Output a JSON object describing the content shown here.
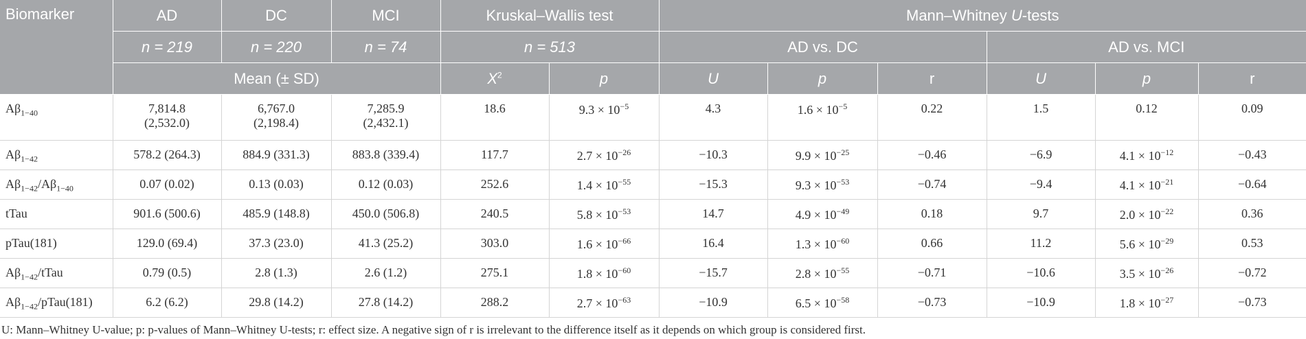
{
  "header": {
    "row1": [
      "Biomarker",
      "AD",
      "DC",
      "MCI",
      "Kruskal–Wallis test",
      [
        "Mann–Whitney ",
        {
          "i": "U"
        },
        "-tests"
      ]
    ],
    "row2": [
      "n = 219",
      "n = 220",
      "n = 74",
      "n = 513",
      "AD vs. DC",
      "AD vs. MCI"
    ],
    "row3": [
      "Mean (± SD)",
      [
        {
          "i": "X"
        },
        {
          "sup": "2"
        }
      ],
      "p",
      "U",
      "p",
      "r",
      "U",
      "p",
      "r"
    ]
  },
  "table": {
    "rows": [
      [
        [
          "Aβ",
          {
            "sub": "1−40"
          }
        ],
        [
          {
            "line": "7,814.8"
          },
          {
            "line": "(2,532.0)"
          }
        ],
        [
          {
            "line": "6,767.0"
          },
          {
            "line": "(2,198.4)"
          }
        ],
        [
          {
            "line": "7,285.9"
          },
          {
            "line": "(2,432.1)"
          }
        ],
        "18.6",
        [
          "9.3 × 10",
          {
            "sup": "−5"
          }
        ],
        "4.3",
        [
          "1.6 × 10",
          {
            "sup": "−5"
          }
        ],
        "0.22",
        "1.5",
        "0.12",
        "0.09"
      ],
      [
        [
          "Aβ",
          {
            "sub": "1−42"
          }
        ],
        "578.2 (264.3)",
        "884.9 (331.3)",
        "883.8 (339.4)",
        "117.7",
        [
          "2.7 × 10",
          {
            "sup": "−26"
          }
        ],
        "−10.3",
        [
          "9.9 × 10",
          {
            "sup": "−25"
          }
        ],
        "−0.46",
        "−6.9",
        [
          "4.1 × 10",
          {
            "sup": "−12"
          }
        ],
        "−0.43"
      ],
      [
        [
          "Aβ",
          {
            "sub": "1−42"
          },
          "/Aβ",
          {
            "sub": "1−40"
          }
        ],
        "0.07 (0.02)",
        "0.13 (0.03)",
        "0.12 (0.03)",
        "252.6",
        [
          "1.4 × 10",
          {
            "sup": "−55"
          }
        ],
        "−15.3",
        [
          "9.3 × 10",
          {
            "sup": "−53"
          }
        ],
        "−0.74",
        "−9.4",
        [
          "4.1 × 10",
          {
            "sup": "−21"
          }
        ],
        "−0.64"
      ],
      [
        "tTau",
        "901.6 (500.6)",
        "485.9 (148.8)",
        "450.0 (506.8)",
        "240.5",
        [
          "5.8 × 10",
          {
            "sup": "−53"
          }
        ],
        "14.7",
        [
          "4.9 × 10",
          {
            "sup": "−49"
          }
        ],
        "0.18",
        "9.7",
        [
          "2.0 × 10",
          {
            "sup": "−22"
          }
        ],
        "0.36"
      ],
      [
        "pTau(181)",
        "129.0 (69.4)",
        "37.3 (23.0)",
        "41.3 (25.2)",
        "303.0",
        [
          "1.6 × 10",
          {
            "sup": "−66"
          }
        ],
        "16.4",
        [
          "1.3 × 10",
          {
            "sup": "−60"
          }
        ],
        "0.66",
        "11.2",
        [
          "5.6 × 10",
          {
            "sup": "−29"
          }
        ],
        "0.53"
      ],
      [
        [
          "Aβ",
          {
            "sub": "1−42"
          },
          "/tTau"
        ],
        "0.79 (0.5)",
        "2.8 (1.3)",
        "2.6 (1.2)",
        "275.1",
        [
          "1.8 × 10",
          {
            "sup": "−60"
          }
        ],
        "−15.7",
        [
          "2.8 × 10",
          {
            "sup": "−55"
          }
        ],
        "−0.71",
        "−10.6",
        [
          "3.5 × 10",
          {
            "sup": "−26"
          }
        ],
        "−0.72"
      ],
      [
        [
          "Aβ",
          {
            "sub": "1−42"
          },
          "/pTau(181)"
        ],
        "6.2 (6.2)",
        "29.8 (14.2)",
        "27.8 (14.2)",
        "288.2",
        [
          "2.7 × 10",
          {
            "sup": "−63"
          }
        ],
        "−10.9",
        [
          "6.5 × 10",
          {
            "sup": "−58"
          }
        ],
        "−0.73",
        "−10.9",
        [
          "1.8 × 10",
          {
            "sup": "−27"
          }
        ],
        "−0.73"
      ]
    ]
  },
  "footnote": "U: Mann–Whitney U-value; p: p-values of Mann–Whitney U-tests; r: effect size. A negative sign of r is irrelevant to the difference itself as it depends on which group is considered first."
}
